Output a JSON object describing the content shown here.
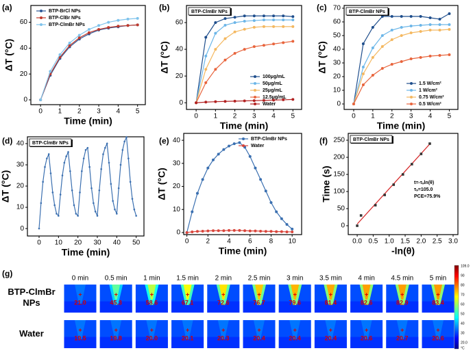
{
  "chart_data": [
    {
      "type": "line",
      "panel": "(a)",
      "xlabel": "Time (min)",
      "ylabel": "ΔT (°C)",
      "x": [
        0,
        0.5,
        1,
        1.5,
        2,
        2.5,
        3,
        3.5,
        4,
        4.5,
        5
      ],
      "xlim": [
        -0.5,
        5.4
      ],
      "ylim": [
        -3.7,
        73
      ],
      "xticks": [
        0,
        1,
        2,
        3,
        4,
        5
      ],
      "yticks": [
        0,
        20,
        40,
        60
      ],
      "legend": "upper left",
      "series": [
        {
          "name": "BTP-BrCl NPs",
          "color": "#2b5797",
          "values": [
            0,
            19,
            32,
            41,
            47,
            51,
            54,
            55.5,
            56.5,
            57.5,
            58
          ]
        },
        {
          "name": "BTP-ClBr NPs",
          "color": "#c0392b",
          "values": [
            0,
            20,
            33,
            42,
            48,
            52,
            54.5,
            56,
            57,
            57.5,
            58
          ]
        },
        {
          "name": "BTP-ClmBr NPs",
          "color": "#7fc3ec",
          "values": [
            0,
            22,
            35,
            44,
            50,
            54.5,
            57.5,
            60,
            61.5,
            62.5,
            63
          ]
        }
      ]
    },
    {
      "type": "line",
      "panel": "(b)",
      "xlabel": "Time (min)",
      "ylabel": "ΔT (°C)",
      "label_box": "BTP-ClmBr NPs",
      "x": [
        0,
        0.5,
        1,
        1.5,
        2,
        2.5,
        3,
        3.5,
        4,
        4.5,
        5
      ],
      "xlim": [
        -0.5,
        5.45
      ],
      "ylim": [
        -5,
        72.8
      ],
      "xticks": [
        0,
        1,
        2,
        3,
        4,
        5
      ],
      "yticks": [
        0,
        20,
        40,
        60
      ],
      "legend": "lower right",
      "series": [
        {
          "name": "100μg/mL",
          "color": "#1f4e8c",
          "values": [
            0,
            49,
            60,
            63,
            64,
            65,
            65,
            65,
            65,
            65,
            64.5
          ]
        },
        {
          "name": "50μg/mL",
          "color": "#6cb6e8",
          "values": [
            0,
            35,
            52,
            58,
            60,
            61,
            61.5,
            62,
            62,
            62,
            62
          ]
        },
        {
          "name": "25μg/mL",
          "color": "#f4b860",
          "values": [
            0,
            25,
            40,
            48,
            53,
            55,
            56.5,
            57,
            57,
            57,
            57
          ]
        },
        {
          "name": "12.5μg/mL",
          "color": "#e8643c",
          "values": [
            0,
            15,
            25,
            32,
            37,
            40,
            42,
            43,
            44,
            45,
            46
          ]
        },
        {
          "name": "Water",
          "color": "#b22222",
          "values": [
            0,
            0.5,
            0.8,
            1,
            1.2,
            1.4,
            1.6,
            1.8,
            2,
            2.2,
            2.5
          ]
        }
      ]
    },
    {
      "type": "line",
      "panel": "(c)",
      "xlabel": "Time (min)",
      "ylabel": "ΔT (°C)",
      "label_box": "BTP-ClmBr NPs",
      "x": [
        0,
        0.5,
        1,
        1.5,
        2,
        2.5,
        3,
        3.5,
        4,
        4.5,
        5
      ],
      "xlim": [
        -0.5,
        5.45
      ],
      "ylim": [
        -4,
        72
      ],
      "xticks": [
        0,
        1,
        2,
        3,
        4,
        5
      ],
      "yticks": [
        0,
        10,
        20,
        30,
        40,
        50,
        60,
        70
      ],
      "legend": "lower right",
      "series": [
        {
          "name": "1.5 W/cm²",
          "color": "#1f4e8c",
          "values": [
            0,
            44,
            56,
            64,
            64,
            64,
            64,
            64,
            63,
            62,
            66
          ]
        },
        {
          "name": "1 W/cm²",
          "color": "#6cb6e8",
          "values": [
            0,
            27,
            41,
            50,
            54,
            56,
            57,
            57.5,
            58,
            58,
            58
          ]
        },
        {
          "name": "0.75 W/cm²",
          "color": "#f4b860",
          "values": [
            0,
            22,
            34,
            42,
            47,
            50,
            52,
            53,
            54,
            54,
            54.5
          ]
        },
        {
          "name": "0.5 W/cm²",
          "color": "#e8643c",
          "values": [
            0,
            14,
            21,
            26,
            29,
            31,
            33,
            34,
            35,
            35.5,
            36
          ]
        }
      ]
    },
    {
      "type": "line",
      "panel": "(d)",
      "xlabel": "Time (min)",
      "ylabel": "ΔT (°C)",
      "label_box": "BTP-ClmBr NPs",
      "x": [
        0,
        1,
        2,
        3,
        4,
        5,
        6,
        7,
        8,
        9,
        10,
        11,
        12,
        13,
        14,
        15,
        16,
        17,
        18,
        19,
        20,
        21,
        22,
        23,
        24,
        25,
        26,
        27,
        28,
        29,
        30,
        31,
        32,
        33,
        34,
        35,
        36,
        37,
        38,
        39,
        40,
        41,
        42,
        43,
        44,
        45,
        46,
        47,
        48,
        49,
        50
      ],
      "xlim": [
        -6,
        54
      ],
      "ylim": [
        -3.5,
        43.2
      ],
      "xticks": [
        0,
        10,
        20,
        30,
        40,
        50
      ],
      "yticks": [
        0,
        10,
        20,
        30,
        40
      ],
      "series": [
        {
          "color": "#3a6fb0",
          "values": [
            0,
            12,
            22,
            29,
            33,
            35,
            26,
            17,
            11,
            7,
            6,
            16,
            25,
            31,
            34,
            36,
            27,
            18,
            11,
            7,
            6,
            17,
            27,
            33,
            37,
            38,
            29,
            19,
            12,
            8,
            6,
            18,
            28,
            35,
            38,
            40,
            31,
            21,
            13,
            9,
            7,
            19,
            30,
            37,
            41,
            43,
            33,
            22,
            14,
            9,
            6
          ]
        }
      ]
    },
    {
      "type": "line",
      "panel": "(e)",
      "xlabel": "Time (min)",
      "ylabel": "ΔT (°C)",
      "x": [
        0,
        0.5,
        1,
        1.5,
        2,
        2.5,
        3,
        3.5,
        4,
        4.5,
        5,
        5.5,
        6,
        6.5,
        7,
        7.5,
        8,
        8.5,
        9,
        9.5,
        10
      ],
      "xlim": [
        -0.3,
        10.9
      ],
      "ylim": [
        -0.9,
        43
      ],
      "xticks": [
        0,
        2,
        4,
        6,
        8,
        10
      ],
      "yticks": [
        0,
        10,
        20,
        30,
        40
      ],
      "legend": "upper right",
      "series": [
        {
          "name": "BTP-ClmBr NPs",
          "color": "#3a6fb0",
          "values": [
            0,
            9,
            17,
            23,
            28,
            31.5,
            34,
            36,
            37.5,
            38.5,
            39,
            37,
            33,
            28,
            23,
            18,
            13,
            9,
            6,
            3.5,
            1.5
          ]
        },
        {
          "name": "Water",
          "color": "#d9453b",
          "values": [
            0,
            0.3,
            0.5,
            0.6,
            0.7,
            0.8,
            0.8,
            0.8,
            0.9,
            0.9,
            0.9,
            0.8,
            0.7,
            0.7,
            0.6,
            0.5,
            0.5,
            0.4,
            0.4,
            0.3,
            0.3
          ]
        }
      ]
    },
    {
      "type": "scatter",
      "panel": "(f)",
      "xlabel": "-ln(θ)",
      "ylabel": "Time (s)",
      "label_box": "BTP-ClmBr NPs",
      "x": [
        0,
        0.12,
        0.57,
        0.86,
        1.14,
        1.43,
        1.71,
        2.0,
        2.27
      ],
      "values": [
        0,
        30,
        60,
        90,
        120,
        150,
        180,
        210,
        240
      ],
      "color": "#333333",
      "fit": {
        "x": [
          0,
          2.3
        ],
        "values": [
          5,
          242
        ],
        "color": "#d62728"
      },
      "annotations": [
        "t=-τₛln(θ)",
        "τₛ=105.0",
        "PCE=75.9%"
      ],
      "xlim": [
        -0.28,
        3.15
      ],
      "ylim": [
        -26,
        270
      ],
      "xticks": [
        {
          "value": 0,
          "label": "0.0"
        },
        0.5,
        {
          "value": 1,
          "label": "1.0"
        },
        1.5,
        {
          "value": 2,
          "label": "2.0"
        },
        2.5,
        {
          "value": 3,
          "label": "3.0"
        }
      ],
      "yticks": [
        0,
        50,
        100,
        150,
        200,
        250
      ]
    }
  ],
  "thermal": {
    "panel": "(g)",
    "columns": [
      "0 min",
      "0.5 min",
      "1 min",
      "1.5 min",
      "2 min",
      "2.5 min",
      "3 min",
      "3.5 min",
      "4 min",
      "4.5 min",
      "5 min"
    ],
    "rows": [
      {
        "label": "BTP-ClmBr NPs",
        "values": [
          "21.0",
          "45.3",
          "58.6",
          "67.1",
          "72.6",
          "76.7",
          "79.6",
          "81.4",
          "82.6",
          "82.9",
          "83.4"
        ]
      },
      {
        "label": "Water",
        "values": [
          "19.5",
          "19.8",
          "20.0",
          "20.1",
          "20.3",
          "20.4",
          "20.4",
          "20.4",
          "20.6",
          "20.7",
          "20.6"
        ]
      }
    ],
    "colorbar": [
      "109.0",
      "90",
      "80",
      "70",
      "60",
      "50",
      "40",
      "30",
      "20.0"
    ],
    "unit": "°C"
  }
}
